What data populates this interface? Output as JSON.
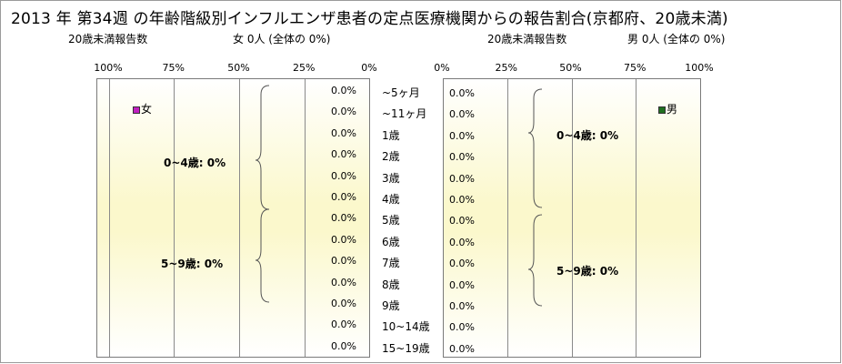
{
  "title": "2013 年  第34週 の年齢階級別インフルエンザ患者の定点医療機関からの報告割合(京都府、20歳未満)",
  "left_header": {
    "count_label": "20歳未満報告数",
    "summary": "女  0人 (全体の  0%)"
  },
  "right_header": {
    "count_label": "20歳未満報告数",
    "summary": "男  0人 (全体の  0%)"
  },
  "colors": {
    "female": "#c020c0",
    "male": "#207020",
    "grid": "#8a8a8a",
    "band": "#fbf8cc"
  },
  "chart_data": [
    {
      "type": "bar",
      "orientation": "horizontal",
      "direction": "right-to-left",
      "legend": "女",
      "legend_position": "top-left",
      "x_ticks": [
        "100%",
        "75%",
        "50%",
        "25%",
        "0%"
      ],
      "xlim": [
        0,
        100
      ],
      "categories": [
        "~5ヶ月",
        "~11ヶ月",
        "1歳",
        "2歳",
        "3歳",
        "4歳",
        "5歳",
        "6歳",
        "7歳",
        "8歳",
        "9歳",
        "10~14歳",
        "15~19歳"
      ],
      "value_labels": [
        "0.0%",
        "0.0%",
        "0.0%",
        "0.0%",
        "0.0%",
        "0.0%",
        "0.0%",
        "0.0%",
        "0.0%",
        "0.0%",
        "0.0%",
        "0.0%",
        "0.0%"
      ],
      "values": [
        0,
        0,
        0,
        0,
        0,
        0,
        0,
        0,
        0,
        0,
        0,
        0,
        0
      ],
      "groups": [
        {
          "label": "0~4歳:  0%"
        },
        {
          "label": "5~9歳:  0%"
        }
      ]
    },
    {
      "type": "bar",
      "orientation": "horizontal",
      "direction": "left-to-right",
      "legend": "男",
      "legend_position": "top-right",
      "x_ticks": [
        "0%",
        "25%",
        "50%",
        "75%",
        "100%"
      ],
      "xlim": [
        0,
        100
      ],
      "categories": [
        "~5ヶ月",
        "~11ヶ月",
        "1歳",
        "2歳",
        "3歳",
        "4歳",
        "5歳",
        "6歳",
        "7歳",
        "8歳",
        "9歳",
        "10~14歳",
        "15~19歳"
      ],
      "value_labels": [
        "0.0%",
        "0.0%",
        "0.0%",
        "0.0%",
        "0.0%",
        "0.0%",
        "0.0%",
        "0.0%",
        "0.0%",
        "0.0%",
        "0.0%",
        "0.0%",
        "0.0%"
      ],
      "values": [
        0,
        0,
        0,
        0,
        0,
        0,
        0,
        0,
        0,
        0,
        0,
        0,
        0
      ],
      "groups": [
        {
          "label": "0~4歳:  0%"
        },
        {
          "label": "5~9歳:  0%"
        }
      ]
    }
  ]
}
